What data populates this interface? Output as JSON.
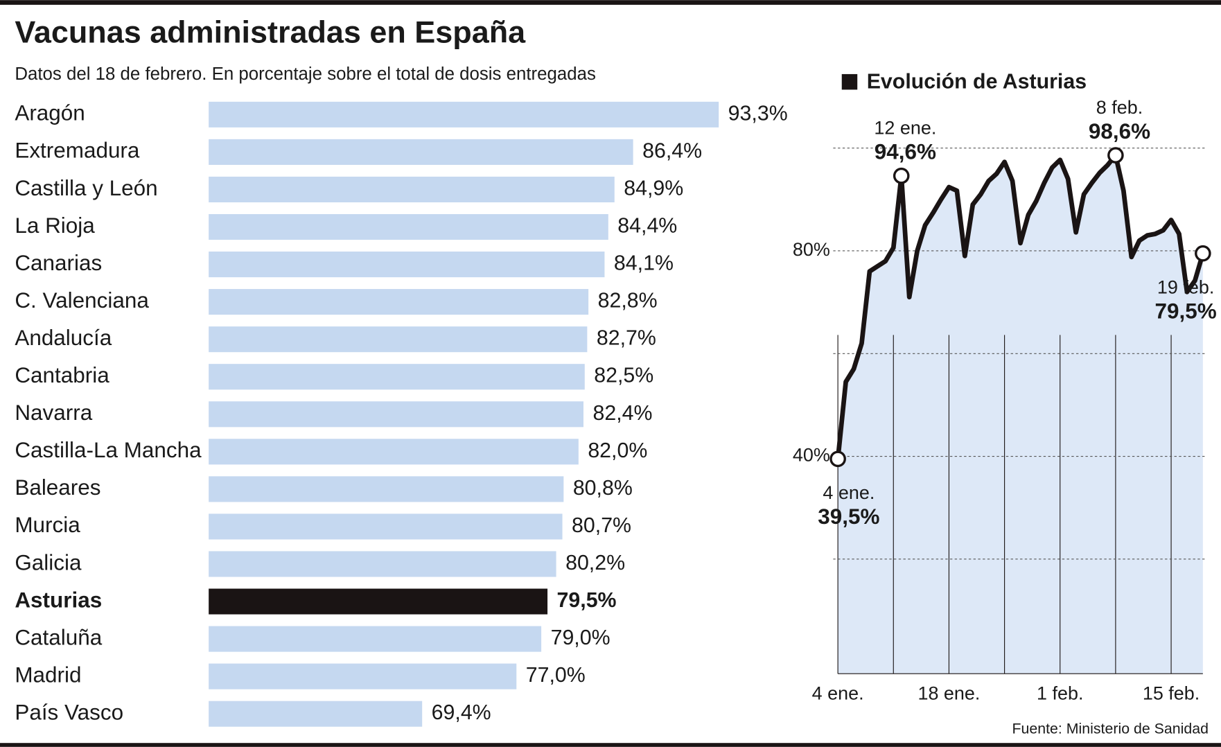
{
  "title": "Vacunas administradas en España",
  "subtitle": "Datos del 18 de febrero. En porcentaje sobre el total de dosis entregadas",
  "source": "Fuente: Ministerio de Sanidad",
  "chart_data": [
    {
      "type": "bar",
      "orientation": "horizontal",
      "categories": [
        "Aragón",
        "Extremadura",
        "Castilla y León",
        "La Rioja",
        "Canarias",
        "C. Valenciana",
        "Andalucía",
        "Cantabria",
        "Navarra",
        "Castilla-La Mancha",
        "Baleares",
        "Murcia",
        "Galicia",
        "Asturias",
        "Cataluña",
        "Madrid",
        "País Vasco"
      ],
      "values": [
        93.3,
        86.4,
        84.9,
        84.4,
        84.1,
        82.8,
        82.7,
        82.5,
        82.4,
        82.0,
        80.8,
        80.7,
        80.2,
        79.5,
        79.0,
        77.0,
        69.4
      ],
      "value_labels": [
        "93,3%",
        "86,4%",
        "84,9%",
        "84,4%",
        "84,1%",
        "82,8%",
        "82,7%",
        "82,5%",
        "82,4%",
        "82,0%",
        "80,8%",
        "80,7%",
        "80,2%",
        "79,5%",
        "79,0%",
        "77,0%",
        "69,4%"
      ],
      "color": "#c5d8f0",
      "colors": [
        "#c5d8f0",
        "#c5d8f0",
        "#c5d8f0",
        "#c5d8f0",
        "#c5d8f0",
        "#c5d8f0",
        "#c5d8f0",
        "#c5d8f0",
        "#c5d8f0",
        "#c5d8f0",
        "#c5d8f0",
        "#c5d8f0",
        "#c5d8f0",
        "#1a1414",
        "#c5d8f0",
        "#c5d8f0",
        "#c5d8f0"
      ],
      "xlim": [
        52.2,
        93.3
      ]
    },
    {
      "type": "line",
      "title": "Evolución de Asturias",
      "categories": [
        "4 ene.",
        null,
        null,
        null,
        null,
        null,
        null,
        null,
        null,
        null,
        null,
        null,
        null,
        null,
        "18 ene.",
        null,
        null,
        null,
        null,
        null,
        null,
        null,
        null,
        null,
        null,
        null,
        null,
        null,
        "1 feb.",
        null,
        null,
        null,
        null,
        null,
        null,
        null,
        null,
        null,
        null,
        null,
        null,
        null,
        "15 feb.",
        null,
        null,
        null,
        null
      ],
      "values": [
        39.5,
        54.5,
        57,
        62,
        76,
        77,
        78,
        80.6,
        94.6,
        71,
        80,
        85,
        87.4,
        90,
        92.4,
        91.7,
        79,
        89,
        91,
        93.6,
        95,
        97.3,
        93.6,
        81.5,
        87,
        89.7,
        93.2,
        96.2,
        97.7,
        94,
        83.6,
        91,
        93.2,
        95.2,
        96.7,
        98.6,
        91.7,
        78.8,
        82,
        83,
        83.3,
        84,
        86,
        83.3,
        72,
        74.2,
        79.5
      ],
      "value_labels": [
        "39,5%",
        null,
        null,
        null,
        null,
        null,
        null,
        null,
        "94,6%",
        null,
        null,
        null,
        null,
        null,
        null,
        null,
        null,
        null,
        null,
        null,
        null,
        null,
        null,
        null,
        null,
        null,
        null,
        null,
        null,
        null,
        null,
        null,
        null,
        null,
        null,
        "98,6%",
        null,
        null,
        null,
        null,
        null,
        null,
        null,
        null,
        null,
        null,
        "79,5%"
      ],
      "point_labels": [
        "4 ene.",
        null,
        null,
        null,
        null,
        null,
        null,
        null,
        "12 ene.",
        null,
        null,
        null,
        null,
        null,
        null,
        null,
        null,
        null,
        null,
        null,
        null,
        null,
        null,
        null,
        null,
        null,
        null,
        null,
        null,
        null,
        null,
        null,
        null,
        null,
        null,
        "8 feb.",
        null,
        null,
        null,
        null,
        null,
        null,
        null,
        null,
        null,
        null,
        "19 feb."
      ],
      "color": "#1a1414",
      "area_color": "#dde8f7",
      "ylim": [
        -2.3,
        100
      ],
      "yticks": [
        {
          "value": 20,
          "label": null
        },
        {
          "value": 40,
          "label": "40%"
        },
        {
          "value": 60,
          "label": null
        },
        {
          "value": 80,
          "label": "80%"
        },
        {
          "value": 100,
          "label": null
        }
      ],
      "grid": true
    }
  ]
}
